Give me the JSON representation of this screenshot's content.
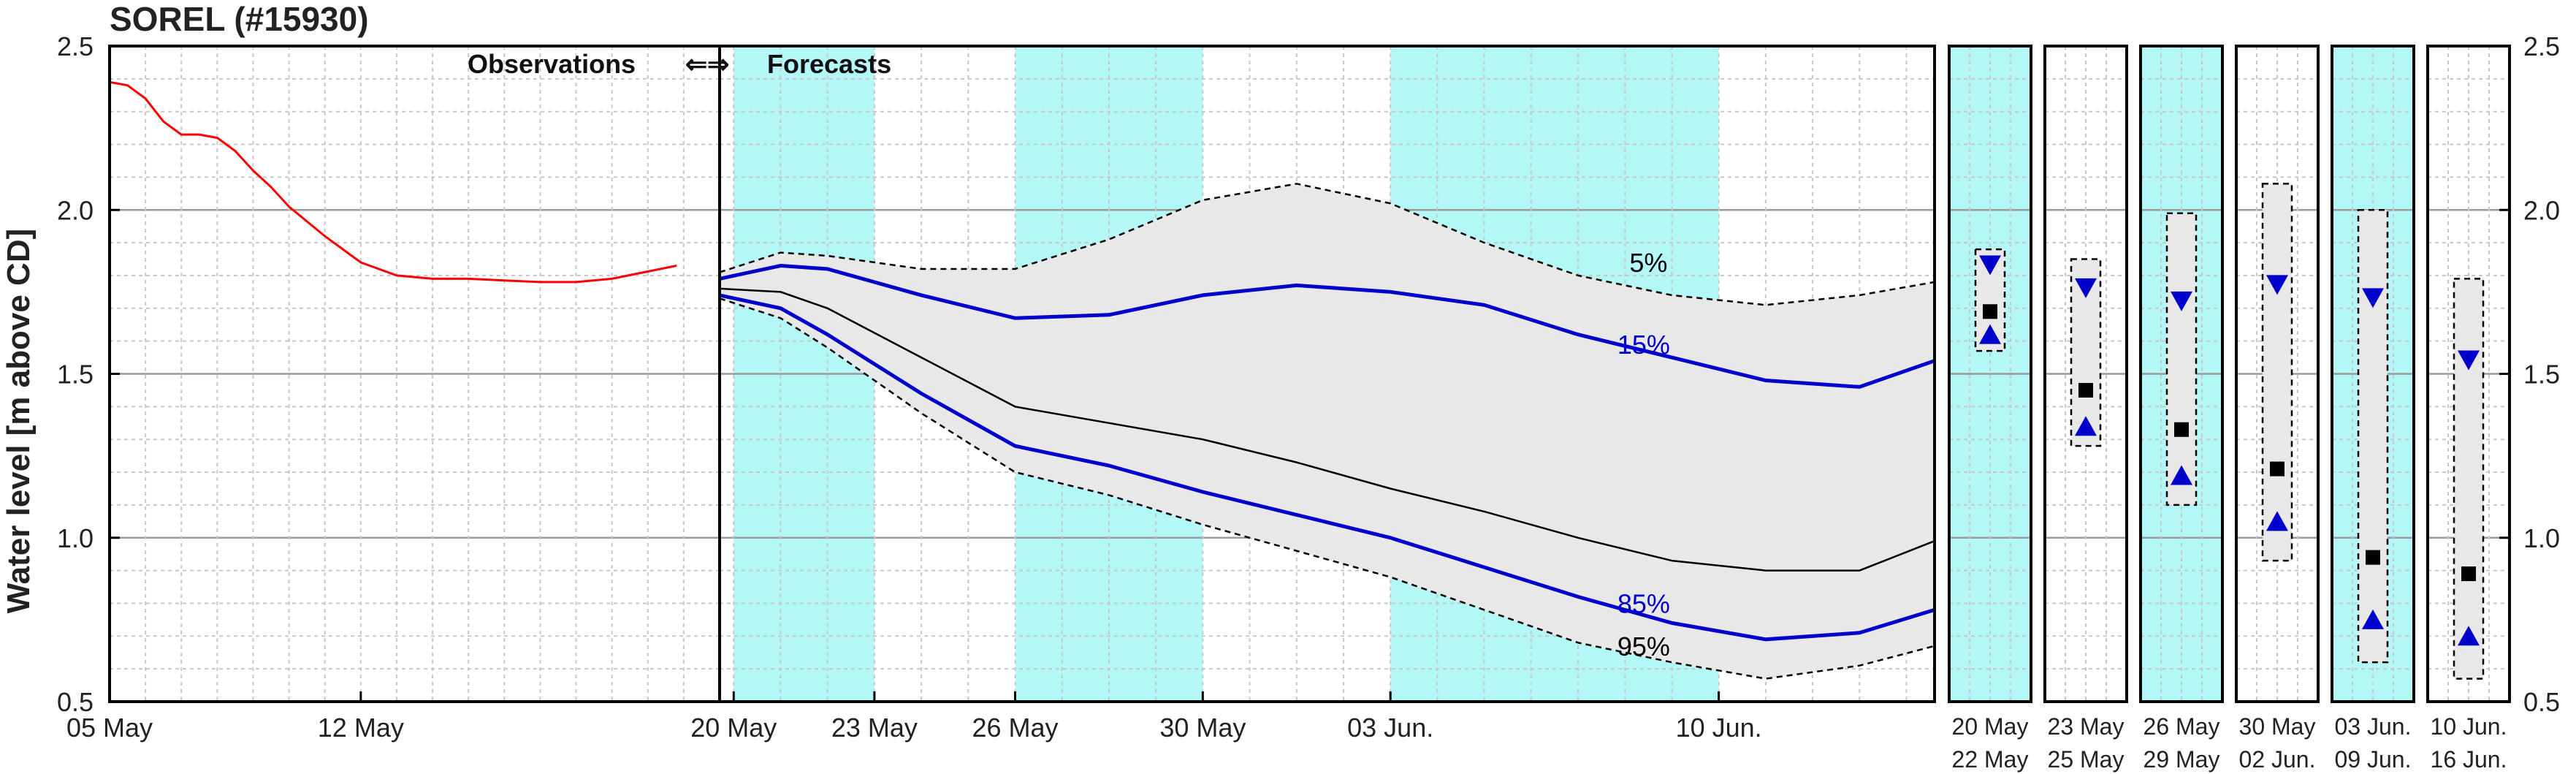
{
  "chart_data": {
    "type": "line",
    "title": "SOREL (#15930)",
    "ylabel": "Water level [m above CD]",
    "ylim": [
      0.5,
      2.5
    ],
    "yticks": [
      "0.5",
      "1.0",
      "1.5",
      "2.0",
      "2.5"
    ],
    "grid": true,
    "header": {
      "observations": "Observations",
      "arrows": "⇐⇒",
      "forecasts": "Forecasts"
    },
    "colors": {
      "observed": "#ff0000",
      "forecast_band": "#0000cc",
      "median": "#000000",
      "envelope_fill": "#e8e8e8",
      "highlight": "#b3f7f7"
    },
    "observation_panel": {
      "xlim": [
        0,
        17
      ],
      "ticks": [
        {
          "x": 0,
          "label": "05 May"
        },
        {
          "x": 7,
          "label": "12 May"
        }
      ],
      "series": {
        "name": "Observed",
        "x": [
          0,
          0.5,
          1,
          1.5,
          2,
          2.5,
          3,
          3.5,
          4,
          4.5,
          5,
          6,
          7,
          8,
          9,
          10,
          11,
          12,
          13,
          14,
          15.8
        ],
        "y": [
          2.39,
          2.38,
          2.34,
          2.27,
          2.23,
          2.23,
          2.22,
          2.18,
          2.12,
          2.07,
          2.01,
          1.92,
          1.84,
          1.8,
          1.79,
          1.79,
          1.785,
          1.78,
          1.78,
          1.79,
          1.83
        ]
      }
    },
    "forecast_panel": {
      "xlim": [
        -0.3,
        25.6
      ],
      "highlight_ranges": [
        [
          0,
          3
        ],
        [
          6,
          10
        ],
        [
          14,
          21
        ]
      ],
      "ticks": [
        {
          "x": 0,
          "label": "20 May"
        },
        {
          "x": 3,
          "label": "23 May"
        },
        {
          "x": 6,
          "label": "26 May"
        },
        {
          "x": 10,
          "label": "30 May"
        },
        {
          "x": 14,
          "label": "03 Jun."
        },
        {
          "x": 21,
          "label": "10 Jun."
        }
      ],
      "x": [
        -0.3,
        1,
        2,
        4,
        6,
        8,
        10,
        12,
        14,
        16,
        18,
        20,
        22,
        24,
        25.6
      ],
      "series": [
        {
          "name": "5%",
          "line": "dashed",
          "y": [
            1.81,
            1.87,
            1.86,
            1.82,
            1.82,
            1.91,
            2.03,
            2.08,
            2.02,
            1.9,
            1.8,
            1.74,
            1.71,
            1.74,
            1.78
          ]
        },
        {
          "name": "15%",
          "line": "solid-blue",
          "y": [
            1.79,
            1.83,
            1.82,
            1.74,
            1.67,
            1.68,
            1.74,
            1.77,
            1.75,
            1.71,
            1.62,
            1.55,
            1.48,
            1.46,
            1.54
          ]
        },
        {
          "name": "median",
          "line": "solid-black",
          "y": [
            1.76,
            1.75,
            1.7,
            1.55,
            1.4,
            1.35,
            1.3,
            1.23,
            1.15,
            1.08,
            1.0,
            0.93,
            0.9,
            0.9,
            0.99
          ]
        },
        {
          "name": "85%",
          "line": "solid-blue",
          "y": [
            1.74,
            1.7,
            1.62,
            1.44,
            1.28,
            1.22,
            1.14,
            1.07,
            1.0,
            0.91,
            0.82,
            0.74,
            0.69,
            0.71,
            0.78
          ]
        },
        {
          "name": "95%",
          "line": "dashed",
          "y": [
            1.73,
            1.67,
            1.58,
            1.38,
            1.2,
            1.13,
            1.04,
            0.96,
            0.88,
            0.78,
            0.68,
            0.62,
            0.57,
            0.61,
            0.67
          ]
        }
      ],
      "labels": [
        {
          "text": "5%",
          "x": 19.5,
          "y": 1.84,
          "color": "#000000"
        },
        {
          "text": "15%",
          "x": 19.4,
          "y": 1.59,
          "color": "#0000cc"
        },
        {
          "text": "85%",
          "x": 19.4,
          "y": 0.8,
          "color": "#0000cc"
        },
        {
          "text": "95%",
          "x": 19.4,
          "y": 0.67,
          "color": "#000000"
        }
      ]
    },
    "weekly_panels": [
      {
        "label_top": "20  May",
        "label_bottom": "22  May",
        "highlight": true,
        "box": [
          1.57,
          1.88
        ],
        "p15": 1.83,
        "median": 1.69,
        "p85": 1.62
      },
      {
        "label_top": "23  May",
        "label_bottom": "25  May",
        "highlight": false,
        "box": [
          1.28,
          1.85
        ],
        "p15": 1.76,
        "median": 1.45,
        "p85": 1.34
      },
      {
        "label_top": "26  May",
        "label_bottom": "29  May",
        "highlight": true,
        "box": [
          1.1,
          1.99
        ],
        "p15": 1.72,
        "median": 1.33,
        "p85": 1.19
      },
      {
        "label_top": "30  May",
        "label_bottom": "02  Jun.",
        "highlight": false,
        "box": [
          0.93,
          2.08
        ],
        "p15": 1.77,
        "median": 1.21,
        "p85": 1.05
      },
      {
        "label_top": "03  Jun.",
        "label_bottom": "09  Jun.",
        "highlight": true,
        "box": [
          0.62,
          2.0
        ],
        "p15": 1.73,
        "median": 0.94,
        "p85": 0.75
      },
      {
        "label_top": "10  Jun.",
        "label_bottom": "16  Jun.",
        "highlight": false,
        "box": [
          0.57,
          1.79
        ],
        "p15": 1.54,
        "median": 0.89,
        "p85": 0.7
      }
    ]
  }
}
